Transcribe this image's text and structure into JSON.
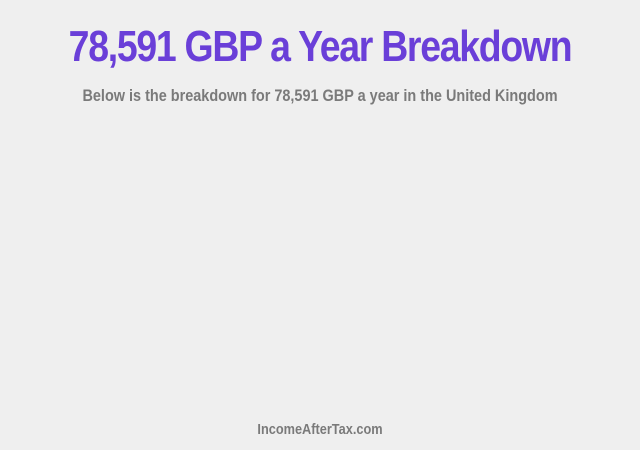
{
  "header": {
    "title": "78,591 GBP a Year Breakdown",
    "subtitle": "Below is the breakdown for 78,591 GBP a year in the United Kingdom"
  },
  "footer": {
    "site": "IncomeAfterTax.com"
  },
  "colors": {
    "accent": "#6a3fd8",
    "background": "#efefef",
    "muted_text": "#7a7a7a"
  }
}
